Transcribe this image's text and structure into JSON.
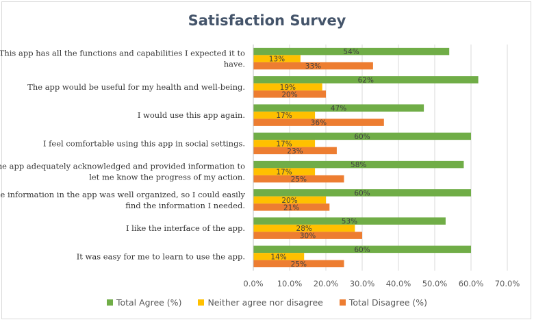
{
  "chart_data": {
    "type": "bar",
    "orientation": "horizontal",
    "title": "Satisfaction Survey",
    "categories": [
      "This app has all the functions and capabilities I expected it to have.",
      "The app would be useful for my health and well-being.",
      "I would use this app again.",
      "I feel comfortable using this app in social settings.",
      "The app adequately acknowledged and provided information to let me know the progress of my action.",
      "The information in the app was well organized, so I could easily find the information I needed.",
      "I like the interface of the app.",
      "It was easy for me to learn to use the app."
    ],
    "category_lines": [
      [
        "This app has all the functions and capabilities I expected it to",
        "have."
      ],
      [
        "The app would be useful for my health and well-being."
      ],
      [
        "I would use this app again."
      ],
      [
        "I feel comfortable using this app in social settings."
      ],
      [
        "The app adequately acknowledged and provided information to",
        "let me know the progress of my action."
      ],
      [
        "The information in the app was well organized, so I could easily",
        "find the information I needed."
      ],
      [
        "I like the interface of the app."
      ],
      [
        "It was easy for me to learn to use the app."
      ]
    ],
    "series": [
      {
        "name": "Total Agree (%)",
        "color": "#70ad47",
        "values": [
          54,
          62,
          47,
          60,
          58,
          60,
          53,
          60
        ]
      },
      {
        "name": "Neither agree nor disagree",
        "color": "#ffc000",
        "values": [
          13,
          19,
          17,
          17,
          17,
          20,
          28,
          14
        ]
      },
      {
        "name": "Total Disagree (%)",
        "color": "#ed7d31",
        "values": [
          33,
          20,
          36,
          23,
          25,
          21,
          30,
          25
        ]
      }
    ],
    "xlim": [
      0,
      70
    ],
    "xticks": [
      "0.0%",
      "10.0%",
      "20.0%",
      "30.0%",
      "40.0%",
      "50.0%",
      "60.0%",
      "70.0%"
    ],
    "grid": "vertical",
    "legend": "bottom"
  }
}
